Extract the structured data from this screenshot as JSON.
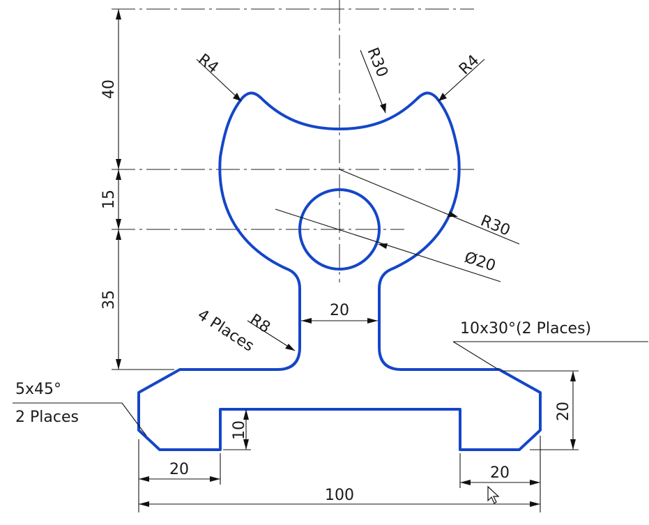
{
  "drawing": {
    "part_color": "#1446c8",
    "line_color": "#111111",
    "background": "#ffffff",
    "dimensions": {
      "height_top": "40",
      "height_mid": "15",
      "height_lower": "35",
      "neck_width": "20",
      "base_height": "20",
      "slot_depth": "10",
      "left_foot_width": "20",
      "right_foot_width": "20",
      "overall_width": "100",
      "radius_corner_left": "R4",
      "radius_corner_right": "R4",
      "radius_top_arc": "R30",
      "radius_body": "R30",
      "hole_diameter": "Ø20",
      "fillet_radius": "R8"
    },
    "notes": {
      "fillet_count": "4 Places",
      "chamfer_right": "10x30°(2 Places)",
      "chamfer_left_line1": "5x45°",
      "chamfer_left_line2": "2 Places"
    },
    "icons": [
      "mouse-pointer-icon"
    ]
  }
}
